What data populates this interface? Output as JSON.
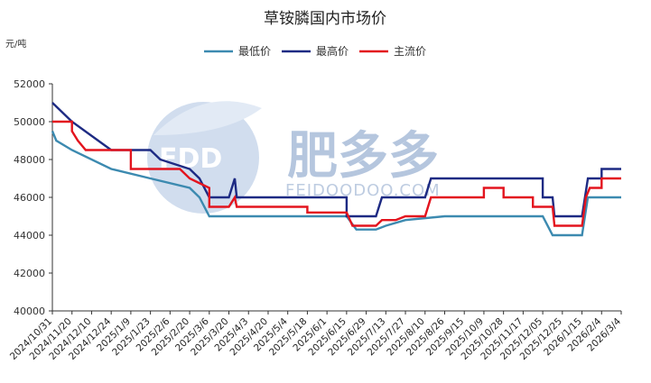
{
  "watermark": {
    "logo": "FDD",
    "text": "肥多多",
    "url": "FEIDOODOO.COM"
  },
  "chart_data": {
    "type": "line",
    "title": "草铵膦国内市场价",
    "ylabel": "元/吨",
    "ylim": [
      40000,
      52000
    ],
    "yticks": [
      40000,
      42000,
      44000,
      46000,
      48000,
      50000,
      52000
    ],
    "xlabels": [
      "2024/10/31",
      "2024/11/20",
      "2024/12/10",
      "2024/12/24",
      "2025/1/9",
      "2025/1/23",
      "2025/2/6",
      "2025/2/20",
      "2025/3/6",
      "2025/3/20",
      "2025/4/3",
      "2025/4/20",
      "2025/5/4",
      "2025/5/18",
      "2025/6/1",
      "2025/6/15",
      "2025/6/29",
      "2025/7/13",
      "2025/7/27",
      "2025/8/10",
      "2025/8/26",
      "2025/9/15",
      "2025/10/9",
      "2025/10/28",
      "2025/11/17",
      "2025/12/05",
      "2025/12/25",
      "2026/1/15",
      "2026/2/4",
      "2026/3/4"
    ],
    "legend_position": "top-center",
    "grid": false,
    "series": [
      {
        "name": "最低价",
        "color": "#3c8ab0",
        "points": [
          [
            0,
            49500
          ],
          [
            0.2,
            49000
          ],
          [
            1,
            48500
          ],
          [
            3,
            47500
          ],
          [
            5,
            47000
          ],
          [
            7,
            46500
          ],
          [
            7.5,
            46000
          ],
          [
            8,
            45000
          ],
          [
            10,
            45000
          ],
          [
            15,
            45000
          ],
          [
            15.5,
            44300
          ],
          [
            16.5,
            44300
          ],
          [
            17,
            44500
          ],
          [
            18,
            44800
          ],
          [
            20,
            45000
          ],
          [
            25,
            45000
          ],
          [
            25.5,
            44000
          ],
          [
            27,
            44000
          ],
          [
            27.3,
            46000
          ],
          [
            29,
            46000
          ]
        ]
      },
      {
        "name": "最高价",
        "color": "#1d2a83",
        "points": [
          [
            0,
            51000
          ],
          [
            1,
            50000
          ],
          [
            3,
            48500
          ],
          [
            5,
            48500
          ],
          [
            5.5,
            48000
          ],
          [
            7,
            47500
          ],
          [
            7.5,
            47000
          ],
          [
            8,
            46000
          ],
          [
            9,
            46000
          ],
          [
            9.3,
            47000
          ],
          [
            9.4,
            46000
          ],
          [
            12,
            46000
          ],
          [
            14,
            46000
          ],
          [
            15,
            46000
          ],
          [
            15,
            45000
          ],
          [
            16.5,
            45000
          ],
          [
            16.8,
            46000
          ],
          [
            18,
            46000
          ],
          [
            19,
            46000
          ],
          [
            19.3,
            47000
          ],
          [
            25,
            47000
          ],
          [
            25,
            46000
          ],
          [
            25.5,
            46000
          ],
          [
            25.6,
            45000
          ],
          [
            27,
            45000
          ],
          [
            27.3,
            47000
          ],
          [
            28,
            47000
          ],
          [
            28,
            47500
          ],
          [
            29,
            47500
          ]
        ]
      },
      {
        "name": "主流价",
        "color": "#e3141e",
        "points": [
          [
            0,
            50000
          ],
          [
            1,
            50000
          ],
          [
            1,
            49500
          ],
          [
            1.3,
            49000
          ],
          [
            1.7,
            48500
          ],
          [
            4,
            48500
          ],
          [
            4,
            47500
          ],
          [
            6,
            47500
          ],
          [
            6.5,
            47500
          ],
          [
            7,
            47000
          ],
          [
            8,
            46500
          ],
          [
            8,
            45500
          ],
          [
            9,
            45500
          ],
          [
            9.3,
            46000
          ],
          [
            9.4,
            45500
          ],
          [
            12,
            45500
          ],
          [
            13,
            45500
          ],
          [
            13,
            45200
          ],
          [
            15,
            45200
          ],
          [
            15.3,
            44500
          ],
          [
            16.5,
            44500
          ],
          [
            16.8,
            44800
          ],
          [
            17.5,
            44800
          ],
          [
            18,
            45000
          ],
          [
            19,
            45000
          ],
          [
            19.3,
            46000
          ],
          [
            22,
            46000
          ],
          [
            22,
            46500
          ],
          [
            23,
            46500
          ],
          [
            23,
            46000
          ],
          [
            24.5,
            46000
          ],
          [
            24.5,
            45500
          ],
          [
            25.5,
            45500
          ],
          [
            25.6,
            44500
          ],
          [
            27,
            44500
          ],
          [
            27.2,
            46000
          ],
          [
            27.4,
            46500
          ],
          [
            28,
            46500
          ],
          [
            28,
            47000
          ],
          [
            29,
            47000
          ]
        ]
      }
    ]
  }
}
